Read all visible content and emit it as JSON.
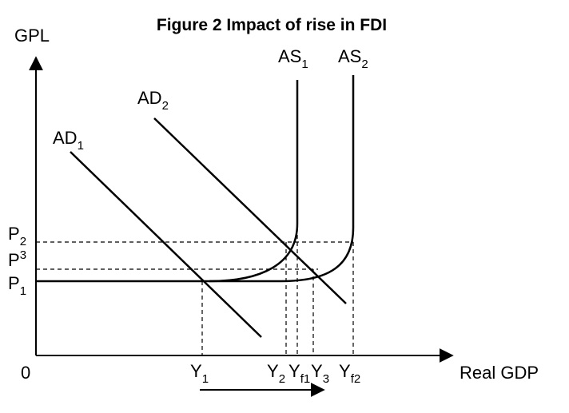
{
  "title": "Figure 2 Impact of rise in FDI",
  "axes": {
    "y_label": "GPL",
    "x_label": "Real GDP",
    "origin": "0"
  },
  "curves": [
    {
      "main": "AD",
      "sub": "1"
    },
    {
      "main": "AD",
      "sub": "2"
    },
    {
      "main": "AS",
      "sub": "1"
    },
    {
      "main": "AS",
      "sub": "2"
    }
  ],
  "price_levels": [
    {
      "main": "P",
      "sub": "2"
    },
    {
      "main": "P",
      "sub": "3"
    },
    {
      "main": "P",
      "sub": "1"
    }
  ],
  "output_levels": [
    {
      "main": "Y",
      "sub": "1"
    },
    {
      "main": "Y",
      "sub": "2"
    },
    {
      "main": "Y",
      "sub": "f1"
    },
    {
      "main": "Y",
      "sub": "3"
    },
    {
      "main": "Y",
      "sub": "f2"
    }
  ]
}
